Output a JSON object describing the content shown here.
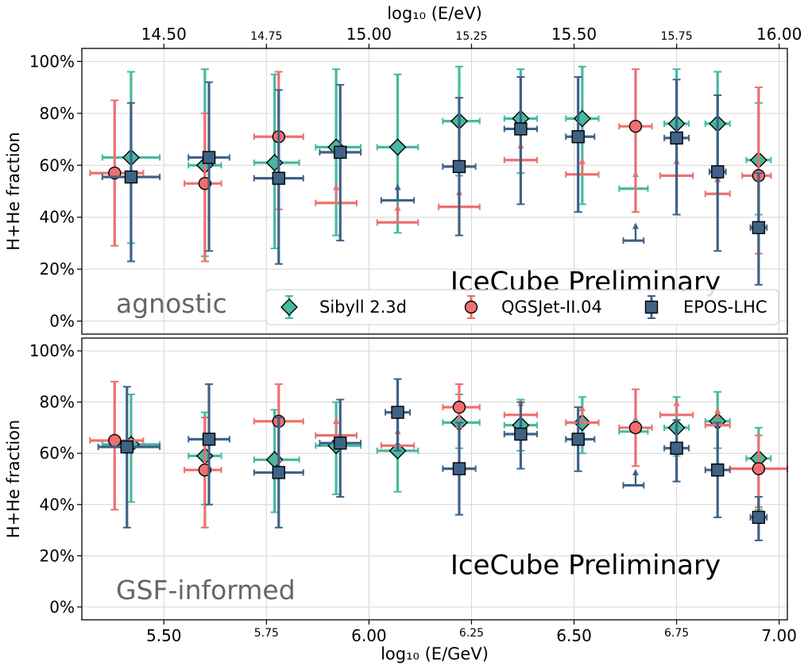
{
  "figure": {
    "top_axis_label": "log₁₀ (E/eV)",
    "bottom_axis_label": "log₁₀ (E/GeV)",
    "watermark": "IceCube Preliminary",
    "colors": {
      "sibyll": "#46b9a0",
      "qgsjet": "#ee6f6f",
      "epos": "#3f6286",
      "watermark": "#c8282c",
      "scenario_label": "#666666",
      "grid": "#d6d6d6"
    },
    "legend": [
      {
        "key": "sibyll",
        "label": "Sibyll 2.3d",
        "marker": "diamond"
      },
      {
        "key": "qgsjet",
        "label": "QGSJet-II.04",
        "marker": "circle"
      },
      {
        "key": "epos",
        "label": "EPOS-LHC",
        "marker": "square"
      }
    ]
  },
  "chart_data": [
    {
      "type": "scatter",
      "panel": "agnostic",
      "scenario_label": "agnostic",
      "ylabel": "H+He fraction",
      "xlim": [
        5.3,
        7.02
      ],
      "ylim": [
        -5,
        105
      ],
      "yticks": [
        "0%",
        "20%",
        "40%",
        "60%",
        "80%",
        "100%"
      ],
      "xticks_bottom": [
        "5.50",
        "5.75",
        "6.00",
        "6.25",
        "6.50",
        "6.75",
        "7.00"
      ],
      "xticks_top": [
        "14.50",
        "14.75",
        "15.00",
        "15.25",
        "15.50",
        "15.75",
        "16.00"
      ],
      "series": [
        {
          "name": "Sibyll 2.3d",
          "key": "sibyll",
          "points": [
            {
              "x": 5.42,
              "xlo": 5.35,
              "xhi": 5.49,
              "y": 63,
              "ylo": 30,
              "yhi": 96
            },
            {
              "x": 5.6,
              "xlo": 5.56,
              "xhi": 5.64,
              "y": 60,
              "ylo": 25,
              "yhi": 97
            },
            {
              "x": 5.77,
              "xlo": 5.72,
              "xhi": 5.83,
              "y": 61,
              "ylo": 28,
              "yhi": 95
            },
            {
              "x": 5.92,
              "xlo": 5.87,
              "xhi": 5.98,
              "y": 67,
              "ylo": 33,
              "yhi": 97
            },
            {
              "x": 6.07,
              "xlo": 6.02,
              "xhi": 6.12,
              "y": 67,
              "ylo": 34,
              "yhi": 95
            },
            {
              "x": 6.22,
              "xlo": 6.18,
              "xhi": 6.27,
              "y": 77,
              "ylo": 56,
              "yhi": 98
            },
            {
              "x": 6.37,
              "xlo": 6.33,
              "xhi": 6.41,
              "y": 78,
              "ylo": 57,
              "yhi": 97
            },
            {
              "x": 6.52,
              "xlo": 6.48,
              "xhi": 6.56,
              "y": 78,
              "ylo": 45,
              "yhi": 98
            },
            {
              "x": 6.65,
              "limit": true,
              "xlo": 6.61,
              "xhi": 6.68,
              "y": 51,
              "arrow_to": 57
            },
            {
              "x": 6.75,
              "xlo": 6.72,
              "xhi": 6.78,
              "y": 76,
              "ylo": 56,
              "yhi": 97
            },
            {
              "x": 6.85,
              "xlo": 6.82,
              "xhi": 6.88,
              "y": 76,
              "ylo": 55,
              "yhi": 96
            },
            {
              "x": 6.95,
              "xlo": 6.92,
              "xhi": 6.98,
              "y": 62,
              "ylo": 41,
              "yhi": 84
            }
          ]
        },
        {
          "name": "QGSJet-II.04",
          "key": "qgsjet",
          "points": [
            {
              "x": 5.38,
              "xlo": 5.32,
              "xhi": 5.45,
              "y": 57,
              "ylo": 29,
              "yhi": 85
            },
            {
              "x": 5.6,
              "xlo": 5.55,
              "xhi": 5.64,
              "y": 53,
              "ylo": 23,
              "yhi": 80
            },
            {
              "x": 5.78,
              "xlo": 5.72,
              "xhi": 5.84,
              "y": 71,
              "ylo": 43,
              "yhi": 96
            },
            {
              "x": 5.92,
              "limit": true,
              "xlo": 5.87,
              "xhi": 5.97,
              "y": 45.5,
              "arrow_to": 52
            },
            {
              "x": 6.07,
              "limit": true,
              "xlo": 6.02,
              "xhi": 6.12,
              "y": 38,
              "arrow_to": 44
            },
            {
              "x": 6.22,
              "limit": true,
              "xlo": 6.17,
              "xhi": 6.27,
              "y": 44,
              "arrow_to": 50
            },
            {
              "x": 6.37,
              "limit": true,
              "xlo": 6.33,
              "xhi": 6.41,
              "y": 62,
              "arrow_to": 68
            },
            {
              "x": 6.52,
              "limit": true,
              "xlo": 6.48,
              "xhi": 6.56,
              "y": 56.5,
              "arrow_to": 62
            },
            {
              "x": 6.65,
              "xlo": 6.61,
              "xhi": 6.69,
              "y": 75,
              "ylo": 42,
              "yhi": 97
            },
            {
              "x": 6.75,
              "limit": true,
              "xlo": 6.71,
              "xhi": 6.79,
              "y": 56,
              "arrow_to": 62
            },
            {
              "x": 6.85,
              "limit": true,
              "xlo": 6.82,
              "xhi": 6.88,
              "y": 49,
              "arrow_to": 55
            },
            {
              "x": 6.95,
              "xlo": 6.91,
              "xhi": 6.98,
              "y": 56,
              "ylo": 26,
              "yhi": 90
            }
          ]
        },
        {
          "name": "EPOS-LHC",
          "key": "epos",
          "points": [
            {
              "x": 5.42,
              "xlo": 5.35,
              "xhi": 5.49,
              "y": 55.5,
              "ylo": 23,
              "yhi": 84
            },
            {
              "x": 5.61,
              "xlo": 5.56,
              "xhi": 5.66,
              "y": 63,
              "ylo": 27,
              "yhi": 92
            },
            {
              "x": 5.78,
              "xlo": 5.72,
              "xhi": 5.84,
              "y": 55,
              "ylo": 22,
              "yhi": 89
            },
            {
              "x": 5.93,
              "xlo": 5.88,
              "xhi": 5.98,
              "y": 65,
              "ylo": 31,
              "yhi": 91
            },
            {
              "x": 6.07,
              "limit": true,
              "xlo": 6.03,
              "xhi": 6.11,
              "y": 46.5,
              "arrow_to": 52
            },
            {
              "x": 6.22,
              "xlo": 6.18,
              "xhi": 6.26,
              "y": 59.5,
              "ylo": 33,
              "yhi": 86
            },
            {
              "x": 6.37,
              "xlo": 6.33,
              "xhi": 6.41,
              "y": 74,
              "ylo": 45,
              "yhi": 94
            },
            {
              "x": 6.51,
              "xlo": 6.48,
              "xhi": 6.55,
              "y": 71,
              "ylo": 42,
              "yhi": 94
            },
            {
              "x": 6.65,
              "limit": true,
              "xlo": 6.62,
              "xhi": 6.67,
              "y": 31,
              "arrow_to": 37
            },
            {
              "x": 6.75,
              "xlo": 6.72,
              "xhi": 6.78,
              "y": 70.5,
              "ylo": 41,
              "yhi": 93
            },
            {
              "x": 6.85,
              "xlo": 6.83,
              "xhi": 6.87,
              "y": 57.5,
              "ylo": 27,
              "yhi": 87
            },
            {
              "x": 6.95,
              "xlo": 6.93,
              "xhi": 6.97,
              "y": 36,
              "ylo": 14,
              "yhi": 57
            }
          ]
        }
      ]
    },
    {
      "type": "scatter",
      "panel": "gsf",
      "scenario_label": "GSF-informed",
      "ylabel": "H+He fraction",
      "xlim": [
        5.3,
        7.02
      ],
      "ylim": [
        -5,
        105
      ],
      "yticks": [
        "0%",
        "20%",
        "40%",
        "60%",
        "80%",
        "100%"
      ],
      "xticks_bottom": [
        "5.50",
        "5.75",
        "6.00",
        "6.25",
        "6.50",
        "6.75",
        "7.00"
      ],
      "xticks_top": [
        "14.50",
        "14.75",
        "15.00",
        "15.25",
        "15.50",
        "15.75",
        "16.00"
      ],
      "series": [
        {
          "name": "Sibyll 2.3d",
          "key": "sibyll",
          "points": [
            {
              "x": 5.42,
              "xlo": 5.35,
              "xhi": 5.49,
              "y": 63.5,
              "ylo": 41,
              "yhi": 83
            },
            {
              "x": 5.6,
              "xlo": 5.56,
              "xhi": 5.64,
              "y": 59,
              "ylo": 40,
              "yhi": 76
            },
            {
              "x": 5.77,
              "xlo": 5.72,
              "xhi": 5.83,
              "y": 57.5,
              "ylo": 37,
              "yhi": 77
            },
            {
              "x": 5.92,
              "xlo": 5.87,
              "xhi": 5.98,
              "y": 63,
              "ylo": 44,
              "yhi": 80
            },
            {
              "x": 6.07,
              "xlo": 6.02,
              "xhi": 6.12,
              "y": 61,
              "ylo": 45,
              "yhi": 77
            },
            {
              "x": 6.22,
              "xlo": 6.18,
              "xhi": 6.27,
              "y": 72,
              "ylo": 62,
              "yhi": 83
            },
            {
              "x": 6.37,
              "xlo": 6.33,
              "xhi": 6.41,
              "y": 71,
              "ylo": 61,
              "yhi": 81
            },
            {
              "x": 6.52,
              "xlo": 6.48,
              "xhi": 6.56,
              "y": 72,
              "ylo": 60,
              "yhi": 82
            },
            {
              "x": 6.65,
              "limit": true,
              "xlo": 6.61,
              "xhi": 6.68,
              "y": 68.5,
              "arrow_to": 74
            },
            {
              "x": 6.75,
              "xlo": 6.72,
              "xhi": 6.78,
              "y": 70,
              "ylo": 59,
              "yhi": 82
            },
            {
              "x": 6.85,
              "xlo": 6.82,
              "xhi": 6.88,
              "y": 72.5,
              "ylo": 62,
              "yhi": 84
            },
            {
              "x": 6.95,
              "xlo": 6.92,
              "xhi": 6.98,
              "y": 58,
              "ylo": 38,
              "yhi": 70
            }
          ]
        },
        {
          "name": "QGSJet-II.04",
          "key": "qgsjet",
          "points": [
            {
              "x": 5.38,
              "xlo": 5.32,
              "xhi": 5.45,
              "y": 65,
              "ylo": 38,
              "yhi": 88
            },
            {
              "x": 5.6,
              "xlo": 5.55,
              "xhi": 5.64,
              "y": 53.5,
              "ylo": 31,
              "yhi": 74
            },
            {
              "x": 5.78,
              "xlo": 5.72,
              "xhi": 5.84,
              "y": 72.5,
              "ylo": 57,
              "yhi": 87
            },
            {
              "x": 5.92,
              "limit": true,
              "xlo": 5.87,
              "xhi": 5.97,
              "y": 67,
              "arrow_to": 73
            },
            {
              "x": 6.07,
              "limit": true,
              "xlo": 6.03,
              "xhi": 6.11,
              "y": 63,
              "arrow_to": 69
            },
            {
              "x": 6.22,
              "xlo": 6.18,
              "xhi": 6.27,
              "y": 78,
              "ylo": 70,
              "yhi": 87
            },
            {
              "x": 6.37,
              "limit": true,
              "xlo": 6.33,
              "xhi": 6.41,
              "y": 75,
              "arrow_to": 80
            },
            {
              "x": 6.52,
              "limit": true,
              "xlo": 6.48,
              "xhi": 6.56,
              "y": 72,
              "arrow_to": 78
            },
            {
              "x": 6.65,
              "xlo": 6.61,
              "xhi": 6.69,
              "y": 70,
              "ylo": 55,
              "yhi": 85
            },
            {
              "x": 6.75,
              "limit": true,
              "xlo": 6.71,
              "xhi": 6.79,
              "y": 75,
              "arrow_to": 80
            },
            {
              "x": 6.85,
              "limit": true,
              "xlo": 6.82,
              "xhi": 6.88,
              "y": 71,
              "arrow_to": 77
            },
            {
              "x": 6.95,
              "xlo": 6.88,
              "xhi": 7.02,
              "y": 54,
              "ylo": 39,
              "yhi": 67
            }
          ]
        },
        {
          "name": "EPOS-LHC",
          "key": "epos",
          "points": [
            {
              "x": 5.41,
              "xlo": 5.34,
              "xhi": 5.49,
              "y": 62.5,
              "ylo": 31,
              "yhi": 86
            },
            {
              "x": 5.61,
              "xlo": 5.56,
              "xhi": 5.66,
              "y": 65.5,
              "ylo": 40,
              "yhi": 87
            },
            {
              "x": 5.78,
              "xlo": 5.72,
              "xhi": 5.84,
              "y": 52.5,
              "ylo": 31,
              "yhi": 74
            },
            {
              "x": 5.93,
              "xlo": 5.88,
              "xhi": 5.98,
              "y": 64,
              "ylo": 43,
              "yhi": 81
            },
            {
              "x": 6.07,
              "xlo": 6.04,
              "xhi": 6.1,
              "y": 76,
              "ylo": 61,
              "yhi": 89
            },
            {
              "x": 6.22,
              "xlo": 6.18,
              "xhi": 6.26,
              "y": 54,
              "ylo": 36,
              "yhi": 72
            },
            {
              "x": 6.37,
              "xlo": 6.33,
              "xhi": 6.41,
              "y": 67.5,
              "ylo": 54,
              "yhi": 80
            },
            {
              "x": 6.51,
              "xlo": 6.48,
              "xhi": 6.55,
              "y": 65.5,
              "ylo": 53,
              "yhi": 78
            },
            {
              "x": 6.65,
              "limit": true,
              "xlo": 6.62,
              "xhi": 6.67,
              "y": 47.5,
              "arrow_to": 53
            },
            {
              "x": 6.75,
              "xlo": 6.72,
              "xhi": 6.78,
              "y": 62,
              "ylo": 49,
              "yhi": 73
            },
            {
              "x": 6.85,
              "xlo": 6.82,
              "xhi": 6.88,
              "y": 53.5,
              "ylo": 35,
              "yhi": 72
            },
            {
              "x": 6.95,
              "xlo": 6.93,
              "xhi": 6.97,
              "y": 35,
              "ylo": 26,
              "yhi": 43
            }
          ]
        }
      ]
    }
  ]
}
